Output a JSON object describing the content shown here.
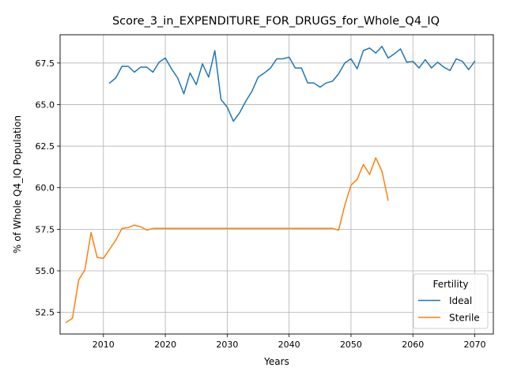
{
  "chart_data": {
    "type": "line",
    "title": "Score_3_in_EXPENDITURE_FOR_DRUGS_for_Whole_Q4_IQ",
    "xlabel": "Years",
    "ylabel": "% of Whole Q4_IQ Population",
    "xlim": [
      2003,
      2073
    ],
    "ylim": [
      51.2,
      69.2
    ],
    "xticks": [
      2010,
      2020,
      2030,
      2040,
      2050,
      2060,
      2070
    ],
    "yticks": [
      52.5,
      55.0,
      57.5,
      60.0,
      62.5,
      65.0,
      67.5
    ],
    "ytick_labels": [
      "52.5",
      "55.0",
      "57.5",
      "60.0",
      "62.5",
      "65.0",
      "67.5"
    ],
    "grid": true,
    "legend": {
      "title": "Fertility",
      "position": "lower-right"
    },
    "series": [
      {
        "name": "Ideal",
        "color": "#1f77b4",
        "x": [
          2011,
          2012,
          2013,
          2014,
          2015,
          2016,
          2017,
          2018,
          2019,
          2020,
          2021,
          2022,
          2023,
          2024,
          2025,
          2026,
          2027,
          2028,
          2029,
          2030,
          2031,
          2032,
          2033,
          2034,
          2035,
          2036,
          2037,
          2038,
          2039,
          2040,
          2041,
          2042,
          2043,
          2044,
          2045,
          2046,
          2047,
          2048,
          2049,
          2050,
          2051,
          2052,
          2053,
          2054,
          2055,
          2056,
          2057,
          2058,
          2059,
          2060,
          2061,
          2062,
          2063,
          2064,
          2065,
          2066,
          2067,
          2068,
          2069,
          2070
        ],
        "y": [
          66.3,
          66.6,
          67.3,
          67.3,
          66.95,
          67.25,
          67.25,
          66.95,
          67.55,
          67.8,
          67.15,
          66.6,
          65.65,
          66.9,
          66.2,
          67.45,
          66.65,
          68.25,
          65.3,
          64.85,
          64.0,
          64.5,
          65.2,
          65.8,
          66.65,
          66.9,
          67.2,
          67.75,
          67.75,
          67.85,
          67.2,
          67.2,
          66.3,
          66.3,
          66.05,
          66.3,
          66.4,
          66.85,
          67.5,
          67.75,
          67.15,
          68.25,
          68.4,
          68.1,
          68.5,
          67.8,
          68.05,
          68.35,
          67.55,
          67.6,
          67.2,
          67.7,
          67.2,
          67.55,
          67.25,
          67.05,
          67.75,
          67.6,
          67.1,
          67.6
        ]
      },
      {
        "name": "Sterile",
        "color": "#ff7f0e",
        "x": [
          2004,
          2005,
          2006,
          2007,
          2008,
          2009,
          2010,
          2011,
          2012,
          2013,
          2014,
          2015,
          2016,
          2017,
          2018,
          2019,
          2020,
          2021,
          2022,
          2023,
          2024,
          2025,
          2026,
          2027,
          2028,
          2029,
          2030,
          2031,
          2032,
          2033,
          2034,
          2035,
          2036,
          2037,
          2038,
          2039,
          2040,
          2041,
          2042,
          2043,
          2044,
          2045,
          2046,
          2047,
          2048,
          2049,
          2050,
          2051,
          2052,
          2053,
          2054,
          2055,
          2056
        ],
        "y": [
          51.9,
          52.15,
          54.45,
          55.05,
          57.3,
          55.8,
          55.75,
          56.3,
          56.85,
          57.55,
          57.6,
          57.75,
          57.65,
          57.45,
          57.55,
          57.55,
          57.55,
          57.55,
          57.55,
          57.55,
          57.55,
          57.55,
          57.55,
          57.55,
          57.55,
          57.55,
          57.55,
          57.55,
          57.55,
          57.55,
          57.55,
          57.55,
          57.55,
          57.55,
          57.55,
          57.55,
          57.55,
          57.55,
          57.55,
          57.55,
          57.55,
          57.55,
          57.55,
          57.55,
          57.45,
          58.95,
          60.15,
          60.5,
          61.4,
          60.8,
          61.8,
          61.0,
          59.25
        ]
      }
    ]
  }
}
